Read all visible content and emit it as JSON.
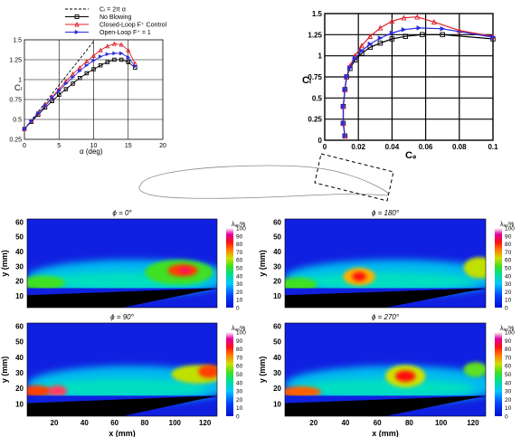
{
  "top_left_chart": {
    "legend": [
      {
        "label": "Cₗ = 2π α",
        "color": "#000000",
        "style": "dashed"
      },
      {
        "label": "No Blowing",
        "color": "#000000",
        "marker": "square"
      },
      {
        "label": "Closed-Loop F⁺ Control",
        "color": "#e0202a",
        "marker": "triangle"
      },
      {
        "label": "Open-Loop F⁺ = 1",
        "color": "#2a2ae0",
        "marker": "triangle-right"
      }
    ],
    "ylabel": "Cₗ",
    "xlabel": "α (deg)",
    "xticks": [
      "0",
      "5",
      "10",
      "15",
      "20"
    ],
    "yticks": [
      "0.25",
      "0.5",
      "0.75",
      "1",
      "1.25",
      "1.5"
    ]
  },
  "top_right_chart": {
    "ylabel": "Cₗ",
    "xlabel": "Cₔ",
    "xticks": [
      "0",
      "0.02",
      "0.04",
      "0.06",
      "0.08",
      "0.1"
    ],
    "yticks": [
      "0",
      "0.25",
      "0.5",
      "0.75",
      "1",
      "1.25",
      "1.5"
    ]
  },
  "colorbar": {
    "title": "λₐₚ%",
    "ticks": [
      "100",
      "90",
      "80",
      "70",
      "60",
      "50",
      "40",
      "30",
      "20",
      "10",
      "0"
    ]
  },
  "heatmaps": [
    {
      "phi_label": "ϕ = 0°",
      "show_ylabel": true,
      "show_xlabel": false
    },
    {
      "phi_label": "ϕ = 180°",
      "show_ylabel": true,
      "show_xlabel": false
    },
    {
      "phi_label": "ϕ = 90°",
      "show_ylabel": true,
      "show_xlabel": true
    },
    {
      "phi_label": "ϕ = 270°",
      "show_ylabel": true,
      "show_xlabel": true
    }
  ],
  "heatmap_axes": {
    "ylabel": "y (mm)",
    "xlabel": "x (mm)",
    "yticks": [
      "60",
      "50",
      "40",
      "30",
      "20",
      "10"
    ],
    "xticks": [
      "20",
      "40",
      "60",
      "80",
      "100",
      "120"
    ]
  },
  "chart_data": [
    {
      "type": "line",
      "xlabel": "α (deg)",
      "ylabel": "Cₗ",
      "xlim": [
        0,
        20
      ],
      "ylim": [
        0.25,
        1.5
      ],
      "series": [
        {
          "name": "Cₗ = 2π α",
          "x": [
            0,
            2,
            4,
            6,
            8,
            10
          ],
          "y": [
            0.38,
            0.6,
            0.82,
            1.04,
            1.26,
            1.48
          ]
        },
        {
          "name": "No Blowing",
          "x": [
            0,
            1,
            2,
            3,
            4,
            5,
            6,
            7,
            8,
            9,
            10,
            11,
            12,
            13,
            14,
            15,
            16
          ],
          "y": [
            0.38,
            0.47,
            0.56,
            0.65,
            0.73,
            0.81,
            0.88,
            0.95,
            1.02,
            1.08,
            1.13,
            1.18,
            1.22,
            1.25,
            1.25,
            1.22,
            1.15
          ]
        },
        {
          "name": "Closed-Loop F⁺ Control",
          "x": [
            0,
            1,
            2,
            3,
            4,
            5,
            6,
            7,
            8,
            9,
            10,
            11,
            12,
            13,
            14,
            15,
            16
          ],
          "y": [
            0.38,
            0.48,
            0.58,
            0.68,
            0.78,
            0.88,
            0.98,
            1.07,
            1.15,
            1.23,
            1.3,
            1.37,
            1.42,
            1.45,
            1.44,
            1.37,
            1.2
          ]
        },
        {
          "name": "Open-Loop F⁺ = 1",
          "x": [
            0,
            1,
            2,
            3,
            4,
            5,
            6,
            7,
            8,
            9,
            10,
            11,
            12,
            13,
            14,
            15,
            16
          ],
          "y": [
            0.38,
            0.48,
            0.58,
            0.67,
            0.77,
            0.86,
            0.95,
            1.03,
            1.11,
            1.18,
            1.24,
            1.29,
            1.32,
            1.33,
            1.33,
            1.28,
            1.17
          ]
        }
      ]
    },
    {
      "type": "line",
      "xlabel": "Cₔ",
      "ylabel": "Cₗ",
      "xlim": [
        0,
        0.1
      ],
      "ylim": [
        0,
        1.5
      ],
      "series": [
        {
          "name": "No Blowing",
          "x": [
            0.012,
            0.011,
            0.011,
            0.012,
            0.013,
            0.015,
            0.018,
            0.022,
            0.027,
            0.033,
            0.04,
            0.048,
            0.058,
            0.07,
            0.1
          ],
          "y": [
            0.05,
            0.2,
            0.4,
            0.6,
            0.75,
            0.85,
            0.95,
            1.03,
            1.1,
            1.15,
            1.2,
            1.23,
            1.25,
            1.25,
            1.2
          ]
        },
        {
          "name": "Closed-Loop F⁺ Control",
          "x": [
            0.012,
            0.011,
            0.011,
            0.012,
            0.013,
            0.015,
            0.018,
            0.022,
            0.027,
            0.033,
            0.04,
            0.047,
            0.055,
            0.065,
            0.08,
            0.1
          ],
          "y": [
            0.05,
            0.2,
            0.4,
            0.6,
            0.75,
            0.88,
            1.0,
            1.12,
            1.23,
            1.33,
            1.41,
            1.45,
            1.46,
            1.4,
            1.3,
            1.23
          ]
        },
        {
          "name": "Open-Loop F⁺ = 1",
          "x": [
            0.012,
            0.011,
            0.011,
            0.012,
            0.013,
            0.015,
            0.018,
            0.022,
            0.027,
            0.033,
            0.04,
            0.047,
            0.056,
            0.07,
            0.1
          ],
          "y": [
            0.05,
            0.2,
            0.4,
            0.6,
            0.75,
            0.86,
            0.97,
            1.06,
            1.14,
            1.21,
            1.27,
            1.31,
            1.33,
            1.32,
            1.22
          ]
        }
      ]
    }
  ]
}
